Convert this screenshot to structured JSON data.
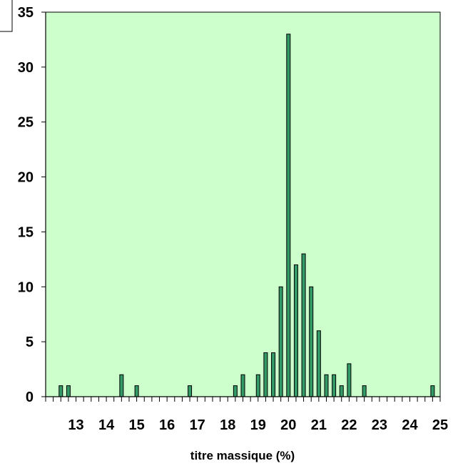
{
  "chart_data": {
    "type": "bar",
    "title": "",
    "xlabel": "titre massique (%)",
    "ylabel": "",
    "xlim": [
      12.0,
      25.0
    ],
    "ylim": [
      0,
      35
    ],
    "xticks": [
      "13",
      "14",
      "15",
      "16",
      "17",
      "18",
      "19",
      "20",
      "21",
      "22",
      "23",
      "24",
      "25"
    ],
    "yticks": [
      "0",
      "5",
      "10",
      "15",
      "20",
      "25",
      "30",
      "35"
    ],
    "x": [
      12.5,
      12.75,
      14.5,
      15.0,
      16.75,
      18.25,
      18.5,
      19.0,
      19.25,
      19.5,
      19.75,
      20.0,
      20.25,
      20.5,
      20.75,
      21.0,
      21.25,
      21.5,
      21.75,
      22.0,
      22.5,
      24.75
    ],
    "values": [
      1,
      1,
      2,
      1,
      1,
      1,
      2,
      2,
      4,
      4,
      10,
      33,
      12,
      13,
      10,
      6,
      2,
      2,
      1,
      3,
      1,
      1
    ],
    "grid": false,
    "legend": "none",
    "colors": {
      "plot_background": "#ccffcc",
      "bar_fill": "#339966",
      "bar_stroke": "#000000"
    }
  }
}
